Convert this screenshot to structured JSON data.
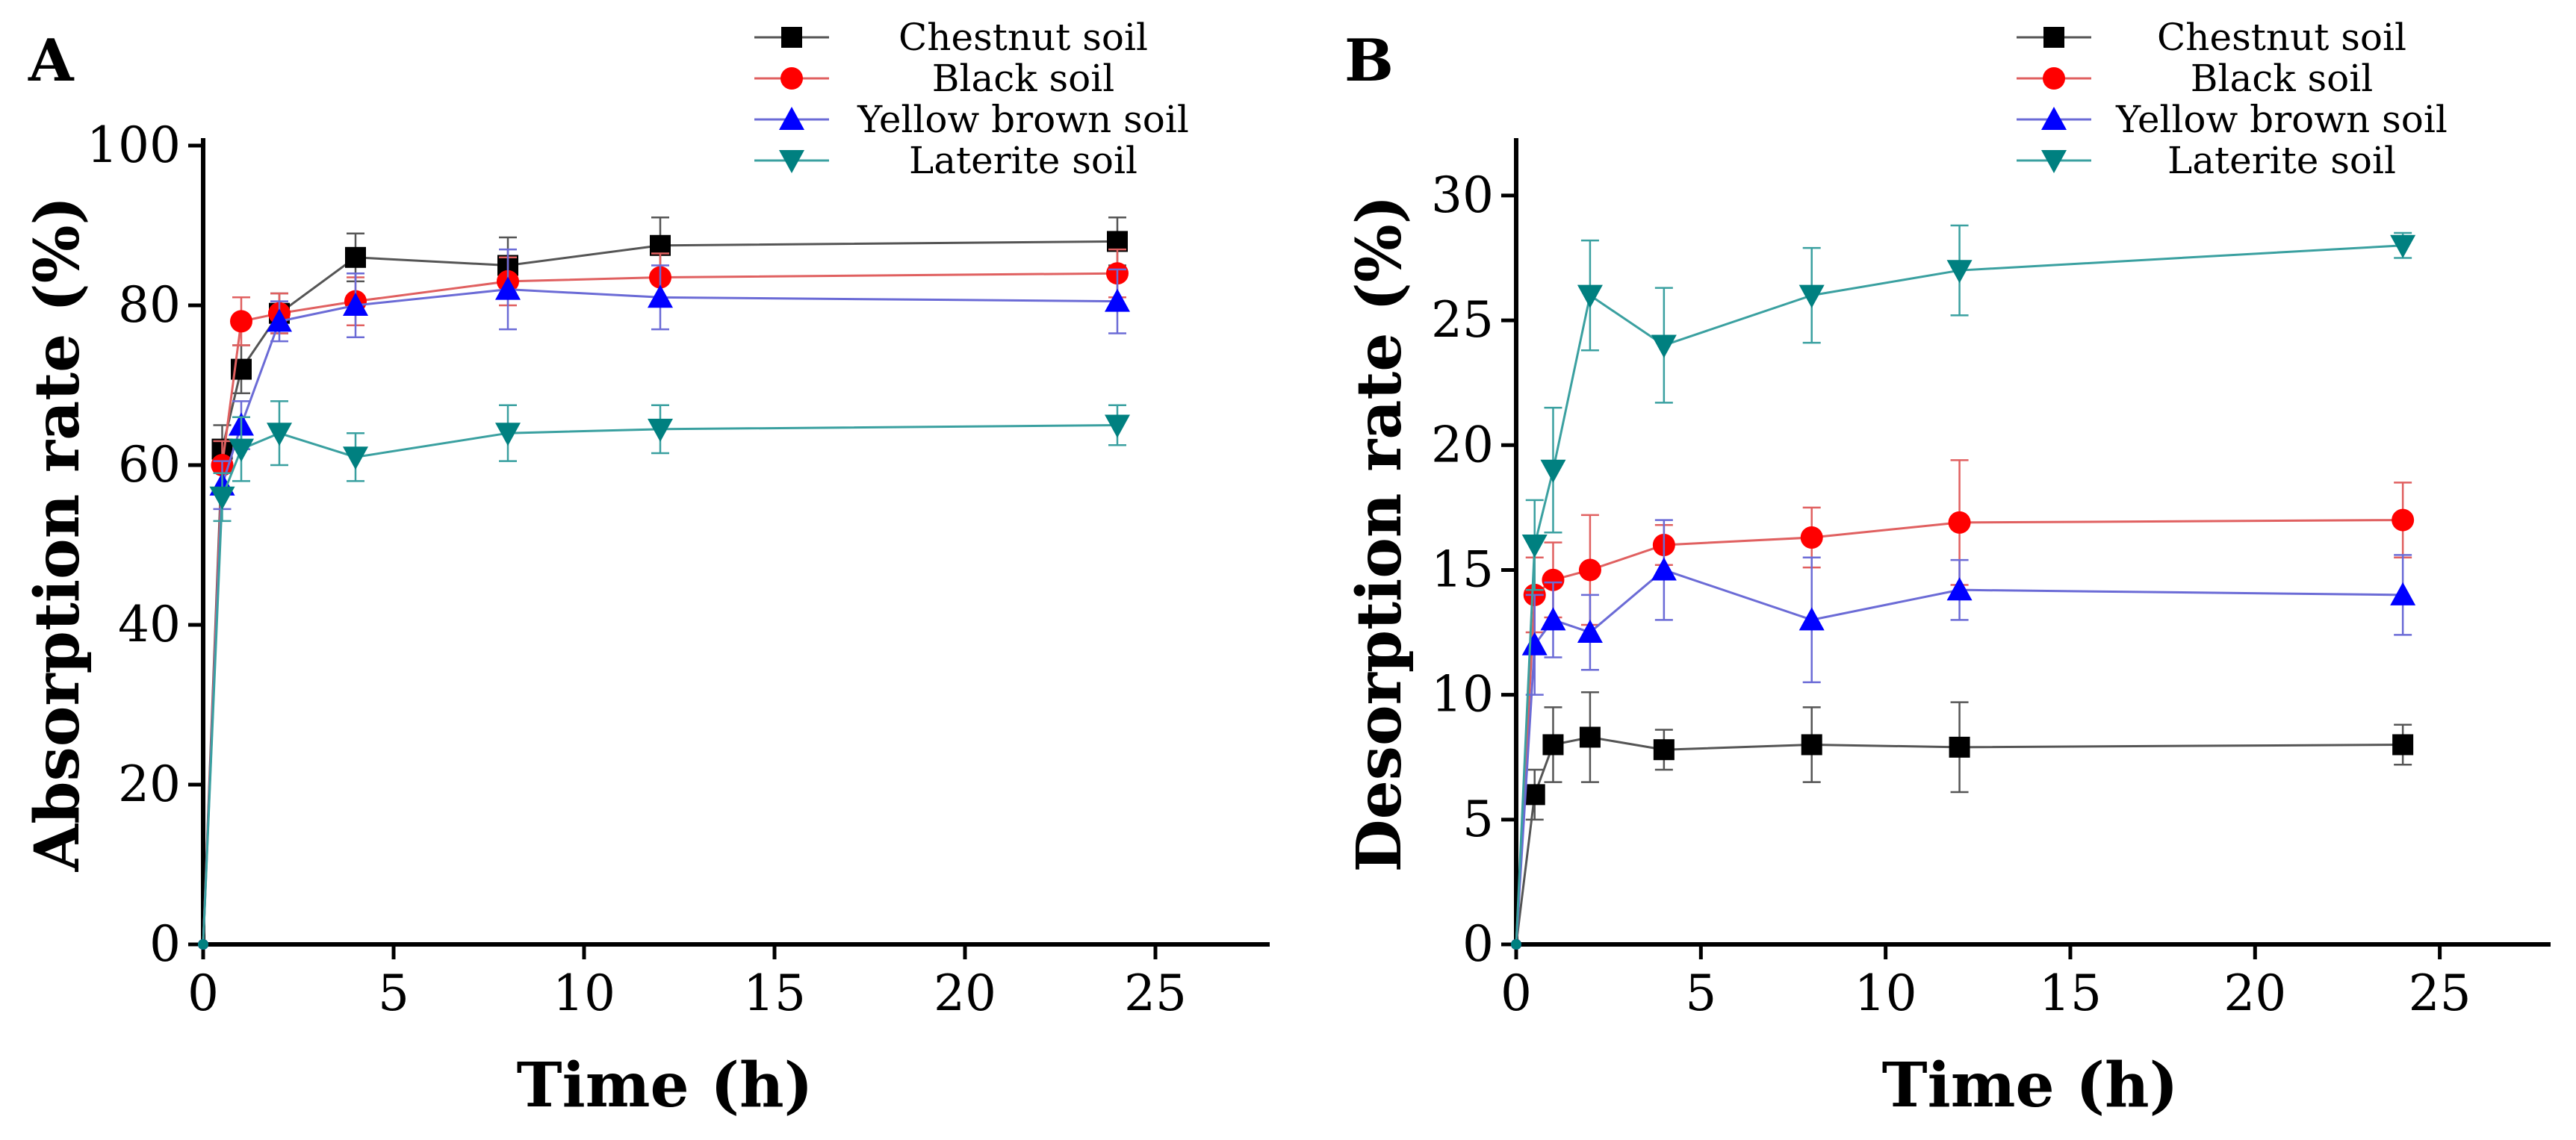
{
  "chart_data": [
    {
      "type": "line",
      "panel_label": "A",
      "xlabel": "Time (h)",
      "ylabel": "Absorption rate (%)",
      "xlim": [
        0,
        28
      ],
      "ylim": [
        0,
        100
      ],
      "xticks": [
        0,
        5,
        10,
        15,
        20,
        25
      ],
      "yticks": [
        0,
        20,
        40,
        60,
        80,
        100
      ],
      "legend_position": "top-right",
      "grid": false,
      "series": [
        {
          "name": "Chestnut soil",
          "color": "#000000",
          "line_color": "#555555",
          "marker": "square",
          "x": [
            0,
            0.5,
            1,
            2,
            4,
            8,
            12,
            24
          ],
          "y": [
            0,
            62,
            72,
            79,
            86,
            85,
            87.5,
            88
          ],
          "err": [
            0,
            3,
            3,
            2.5,
            3,
            3.5,
            3.5,
            3
          ]
        },
        {
          "name": "Black soil",
          "color": "#ff0000",
          "line_color": "#e06060",
          "marker": "circle",
          "x": [
            0,
            0.5,
            1,
            2,
            4,
            8,
            12,
            24
          ],
          "y": [
            0,
            60,
            78,
            79,
            80.5,
            83,
            83.5,
            84
          ],
          "err": [
            0,
            3,
            3,
            2.5,
            3,
            3,
            3,
            3
          ]
        },
        {
          "name": "Yellow brown soil",
          "color": "#0000ff",
          "line_color": "#6b6bd6",
          "marker": "triangle-up",
          "x": [
            0,
            0.5,
            1,
            2,
            4,
            8,
            12,
            24
          ],
          "y": [
            0,
            57.5,
            65,
            78,
            80,
            82,
            81,
            80.5
          ],
          "err": [
            0,
            3,
            3,
            2.5,
            4,
            5,
            4,
            4
          ]
        },
        {
          "name": "Laterite soil",
          "color": "#008080",
          "line_color": "#3aa0a0",
          "marker": "triangle-down",
          "x": [
            0,
            0.5,
            1,
            2,
            4,
            8,
            12,
            24
          ],
          "y": [
            0,
            56,
            62,
            64,
            61,
            64,
            64.5,
            65
          ],
          "err": [
            0,
            3,
            4,
            4,
            3,
            3.5,
            3,
            2.5
          ]
        }
      ]
    },
    {
      "type": "line",
      "panel_label": "B",
      "xlabel": "Time (h)",
      "ylabel": "Desorption rate (%)",
      "xlim": [
        0,
        28
      ],
      "ylim": [
        0,
        32
      ],
      "xticks": [
        0,
        5,
        10,
        15,
        20,
        25
      ],
      "yticks": [
        0,
        5,
        10,
        15,
        20,
        25,
        30
      ],
      "legend_position": "top-right",
      "grid": false,
      "series": [
        {
          "name": "Chestnut soil",
          "color": "#000000",
          "line_color": "#555555",
          "marker": "square",
          "x": [
            0,
            0.5,
            1,
            2,
            4,
            8,
            12,
            24
          ],
          "y": [
            0,
            6,
            8,
            8.3,
            7.8,
            8,
            7.9,
            8
          ],
          "err": [
            0,
            1,
            1.5,
            1.8,
            0.8,
            1.5,
            1.8,
            0.8
          ]
        },
        {
          "name": "Black soil",
          "color": "#ff0000",
          "line_color": "#e06060",
          "marker": "circle",
          "x": [
            0,
            0.5,
            1,
            2,
            4,
            8,
            12,
            24
          ],
          "y": [
            0,
            14,
            14.6,
            15,
            16,
            16.3,
            16.9,
            17
          ],
          "err": [
            0,
            1.5,
            1.5,
            2.2,
            0.8,
            1.2,
            2.5,
            1.5
          ]
        },
        {
          "name": "Yellow brown soil",
          "color": "#0000ff",
          "line_color": "#6b6bd6",
          "marker": "triangle-up",
          "x": [
            0,
            0.5,
            1,
            2,
            4,
            8,
            12,
            24
          ],
          "y": [
            0,
            12,
            13,
            12.5,
            15,
            13,
            14.2,
            14
          ],
          "err": [
            0,
            2,
            1.5,
            1.5,
            2,
            2.5,
            1.2,
            1.6
          ]
        },
        {
          "name": "Laterite soil",
          "color": "#008080",
          "line_color": "#3aa0a0",
          "marker": "triangle-down",
          "x": [
            0,
            0.5,
            1,
            2,
            4,
            8,
            12,
            24
          ],
          "y": [
            0,
            16,
            19,
            26,
            24,
            26,
            27,
            28
          ],
          "err": [
            0,
            1.8,
            2.5,
            2.2,
            2.3,
            1.9,
            1.8,
            0.5
          ]
        }
      ]
    }
  ]
}
